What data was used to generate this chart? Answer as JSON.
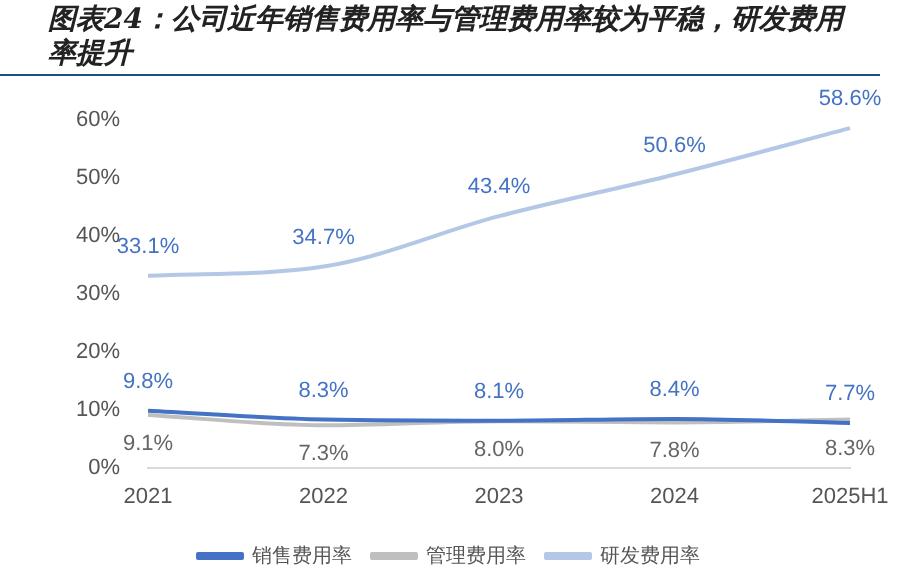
{
  "chart_data": {
    "type": "line",
    "title": "图表24：公司近年销售费用率与管理费用率较为平稳，研发费用率提升",
    "categories": [
      "2021",
      "2022",
      "2023",
      "2024",
      "2025H1"
    ],
    "series": [
      {
        "name": "销售费用率",
        "color": "#4472c4",
        "values": [
          9.8,
          8.3,
          8.1,
          8.4,
          7.7
        ]
      },
      {
        "name": "管理费用率",
        "color": "#bfbfbf",
        "values": [
          9.1,
          7.3,
          8.0,
          7.8,
          8.3
        ]
      },
      {
        "name": "研发费用率",
        "color": "#b4c7e7",
        "values": [
          33.1,
          34.7,
          43.4,
          50.6,
          58.6
        ]
      }
    ],
    "ylim": [
      0,
      60
    ],
    "yticks": [
      {
        "value": 0,
        "label": "0%"
      },
      {
        "value": 10,
        "label": "10%"
      },
      {
        "value": 20,
        "label": "20%"
      },
      {
        "value": 30,
        "label": "30%"
      },
      {
        "value": 40,
        "label": "40%"
      },
      {
        "value": 50,
        "label": "50%"
      },
      {
        "value": 60,
        "label": "60%"
      }
    ],
    "value_labels": [
      [
        "9.8%",
        "8.3%",
        "8.1%",
        "8.4%",
        "7.7%"
      ],
      [
        "9.1%",
        "7.3%",
        "8.0%",
        "7.8%",
        "8.3%"
      ],
      [
        "33.1%",
        "34.7%",
        "43.4%",
        "50.6%",
        "58.6%"
      ]
    ],
    "grid": false,
    "legend": "bottom",
    "marker": "none",
    "line_style": "solid"
  }
}
